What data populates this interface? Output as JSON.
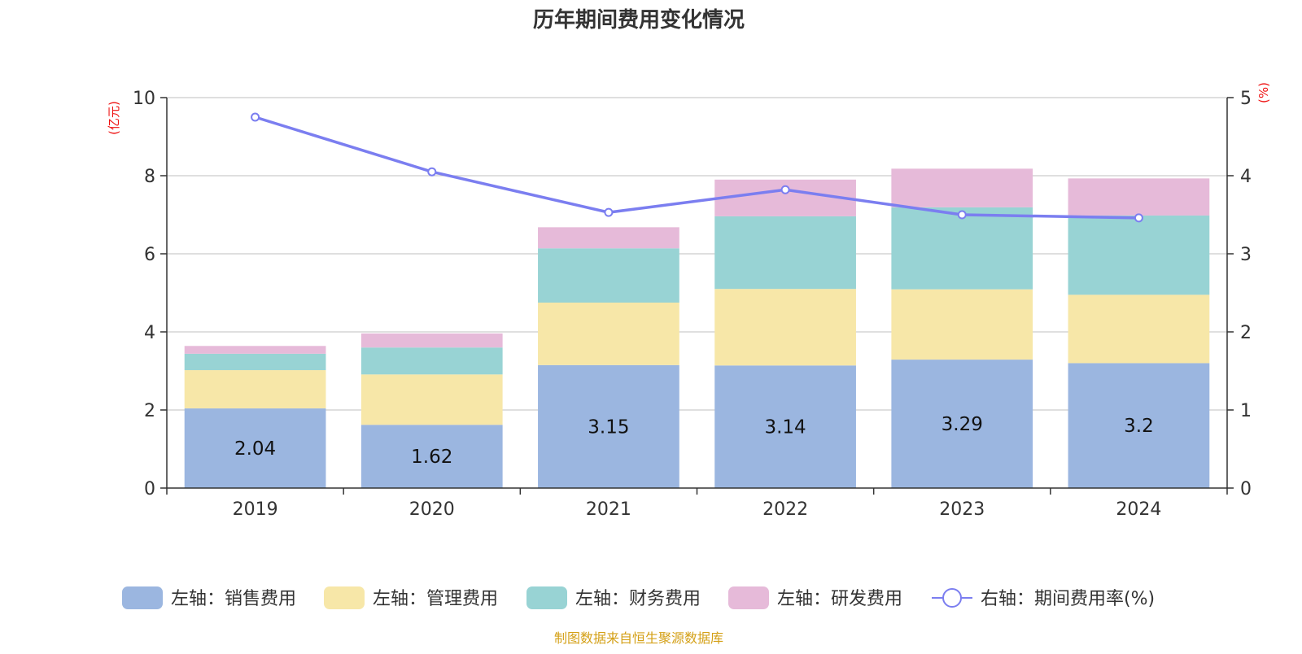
{
  "chart_data": {
    "type": "bar",
    "title": "历年期间费用变化情况",
    "y_left_unit": "(亿元)",
    "y_right_unit": "(%)",
    "categories": [
      "2019",
      "2020",
      "2021",
      "2022",
      "2023",
      "2024"
    ],
    "y_left": {
      "min": 0,
      "max": 10,
      "ticks": [
        "0",
        "2",
        "4",
        "6",
        "8",
        "10"
      ]
    },
    "y_right": {
      "min": 0,
      "max": 5,
      "ticks": [
        "0",
        "1",
        "2",
        "3",
        "4",
        "5"
      ]
    },
    "grid": true,
    "series": [
      {
        "name": "左轴：销售费用",
        "type": "bar",
        "axis": "left",
        "color": "#9bb6e0",
        "values": [
          2.04,
          1.62,
          3.15,
          3.14,
          3.29,
          3.2
        ],
        "labels": [
          "2.04",
          "1.62",
          "3.15",
          "3.14",
          "3.29",
          "3.2"
        ]
      },
      {
        "name": "左轴：管理费用",
        "type": "bar",
        "axis": "left",
        "color": "#f7e7a8",
        "values": [
          0.98,
          1.29,
          1.6,
          1.96,
          1.8,
          1.75
        ]
      },
      {
        "name": "左轴：财务费用",
        "type": "bar",
        "axis": "left",
        "color": "#98d3d4",
        "values": [
          0.42,
          0.69,
          1.39,
          1.86,
          2.1,
          2.03
        ]
      },
      {
        "name": "左轴：研发费用",
        "type": "bar",
        "axis": "left",
        "color": "#e6bad9",
        "values": [
          0.2,
          0.36,
          0.54,
          0.94,
          0.99,
          0.95
        ]
      },
      {
        "name": "右轴：期间费用率(%)",
        "type": "line",
        "axis": "right",
        "color": "#7b7ef0",
        "values": [
          4.75,
          4.05,
          3.53,
          3.82,
          3.5,
          3.46
        ]
      }
    ],
    "legend_position": "bottom-center",
    "source_note": "制图数据来自恒生聚源数据库"
  }
}
